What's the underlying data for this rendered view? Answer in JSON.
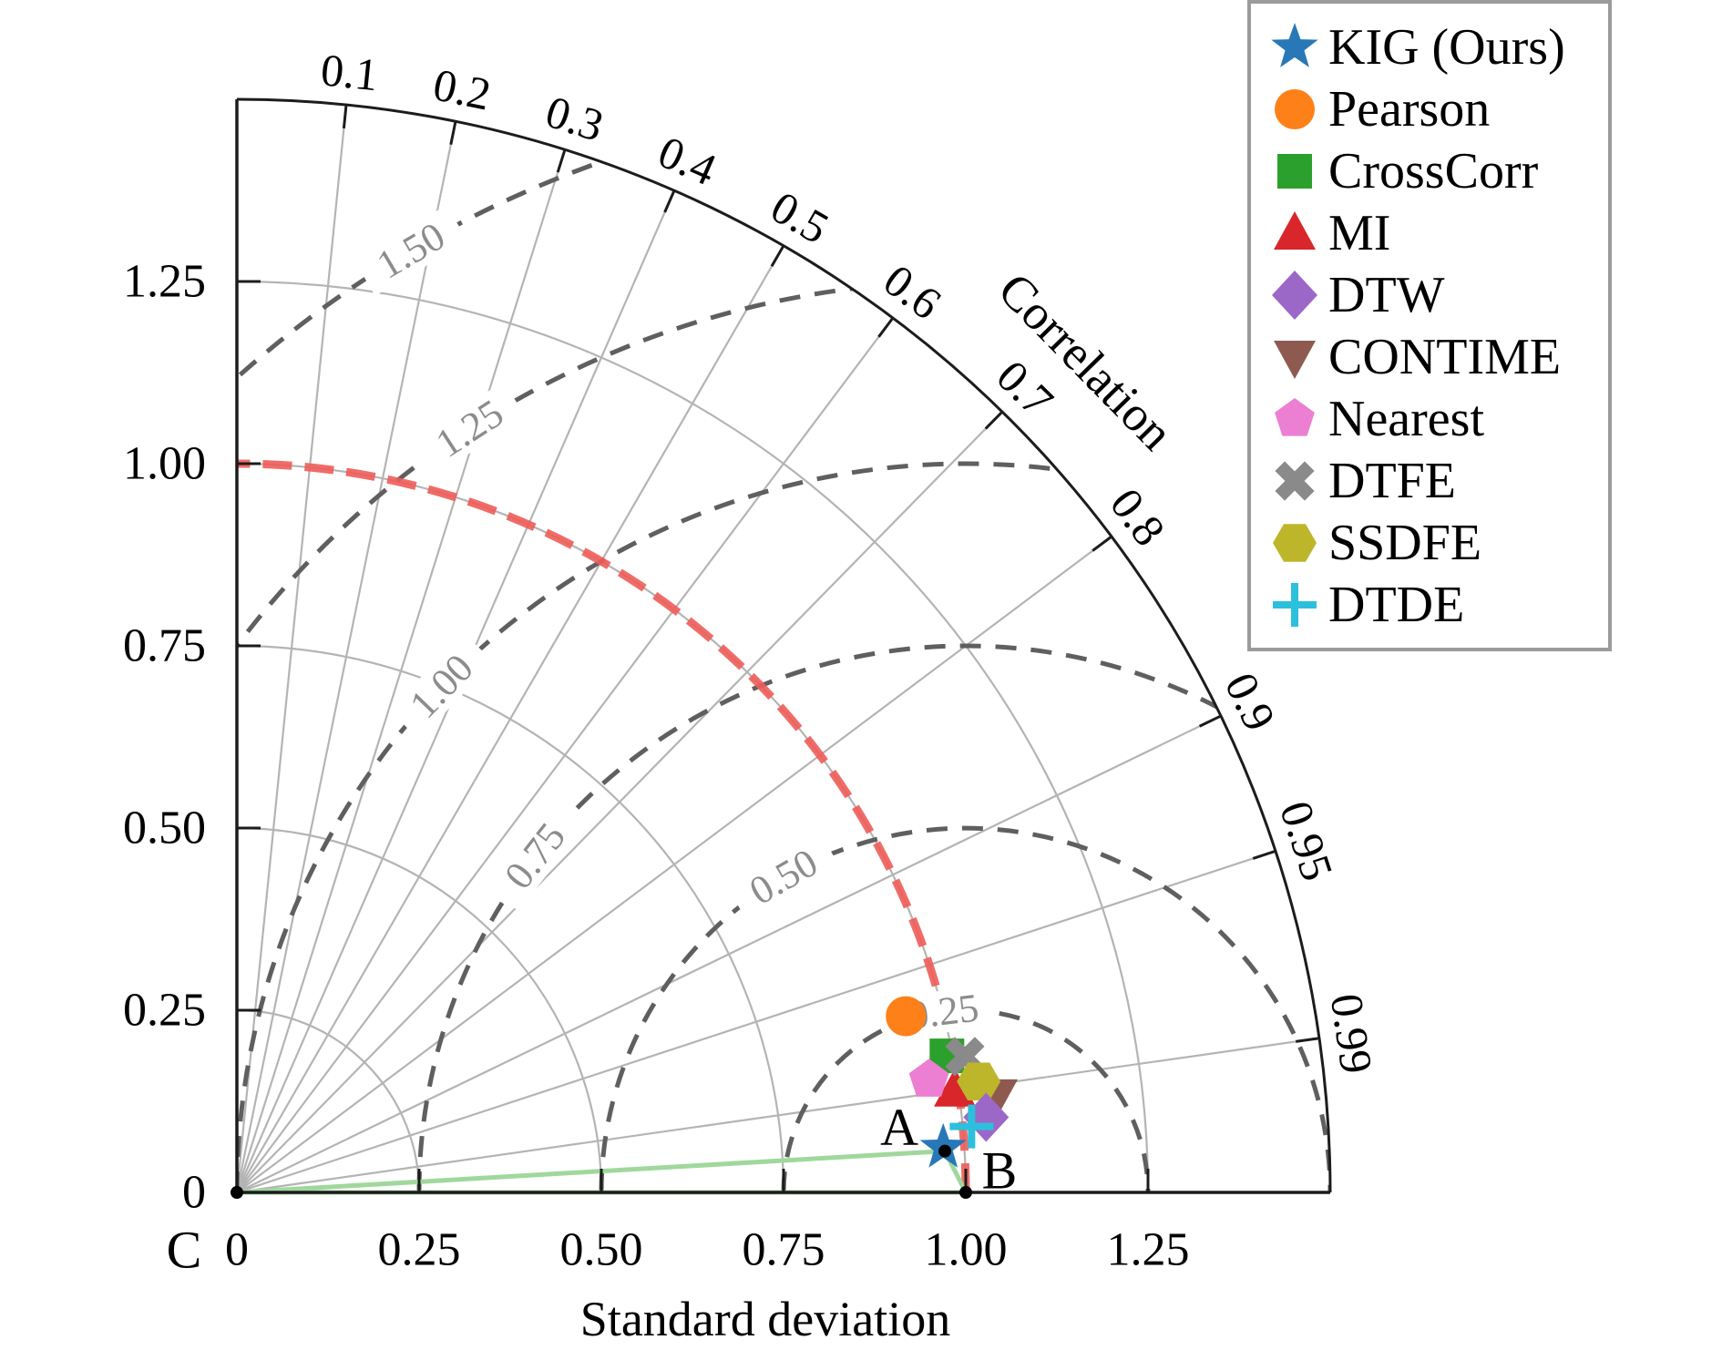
{
  "chart_data": {
    "type": "taylor_diagram",
    "radial_axis": {
      "label": "Standard deviation",
      "ticks": [
        {
          "label": "0",
          "value": 0
        },
        {
          "label": "0.25",
          "value": 0.25
        },
        {
          "label": "0.50",
          "value": 0.5
        },
        {
          "label": "0.75",
          "value": 0.75
        },
        {
          "label": "1.00",
          "value": 1.0
        },
        {
          "label": "1.25",
          "value": 1.25
        }
      ],
      "max": 1.5,
      "grid_values": [
        0.25,
        0.5,
        0.75,
        1.0,
        1.25
      ]
    },
    "angular_axis": {
      "label": "Correlation",
      "ticks": [
        {
          "label": "0.1",
          "value": 0.1
        },
        {
          "label": "0.2",
          "value": 0.2
        },
        {
          "label": "0.3",
          "value": 0.3
        },
        {
          "label": "0.4",
          "value": 0.4
        },
        {
          "label": "0.5",
          "value": 0.5
        },
        {
          "label": "0.6",
          "value": 0.6
        },
        {
          "label": "0.7",
          "value": 0.7
        },
        {
          "label": "0.8",
          "value": 0.8
        },
        {
          "label": "0.9",
          "value": 0.9
        },
        {
          "label": "0.95",
          "value": 0.95
        },
        {
          "label": "0.99",
          "value": 0.99
        }
      ]
    },
    "rms_contours": {
      "center_std": 1.0,
      "levels": [
        {
          "label": "0.25",
          "value": 0.25,
          "label_azimuth_deg": 97
        },
        {
          "label": "0.50",
          "value": 0.5,
          "label_azimuth_deg": 120
        },
        {
          "label": "0.75",
          "value": 0.75,
          "label_azimuth_deg": 142
        },
        {
          "label": "1.00",
          "value": 1.0,
          "label_azimuth_deg": 136
        },
        {
          "label": "1.25",
          "value": 1.25,
          "label_azimuth_deg": 123
        },
        {
          "label": "1.50",
          "value": 1.5,
          "label_azimuth_deg": 120.5
        }
      ]
    },
    "reference_std_arc": {
      "value": 1.0,
      "color": "#ee5c58"
    },
    "series": [
      {
        "name": "KIG (Ours)",
        "marker": "star",
        "color": "#2878b8",
        "std": 0.971,
        "corr": 0.998
      },
      {
        "name": "Pearson",
        "marker": "circle",
        "color": "#fd8118",
        "std": 0.949,
        "corr": 0.967
      },
      {
        "name": "CrossCorr",
        "marker": "square",
        "color": "#2ca02c",
        "std": 0.992,
        "corr": 0.982
      },
      {
        "name": "MI",
        "marker": "triangle-up",
        "color": "#d8262a",
        "std": 0.995,
        "corr": 0.99
      },
      {
        "name": "DTW",
        "marker": "diamond",
        "color": "#9c68c8",
        "std": 1.033,
        "corr": 0.995
      },
      {
        "name": "CONTIME",
        "marker": "triangle-down",
        "color": "#8e5a50",
        "std": 1.051,
        "corr": 0.992
      },
      {
        "name": "Nearest",
        "marker": "pentagon",
        "color": "#ec7fd2",
        "std": 0.962,
        "corr": 0.987
      },
      {
        "name": "DTFE",
        "marker": "x-filled",
        "color": "#8a8a8a",
        "std": 1.016,
        "corr": 0.983
      },
      {
        "name": "SSDFE",
        "marker": "hexagon",
        "color": "#bdb62b",
        "std": 1.029,
        "corr": 0.989
      },
      {
        "name": "DTDE",
        "marker": "plus",
        "color": "#2cc0dc",
        "std": 1.012,
        "corr": 0.996
      }
    ],
    "annotations": {
      "points": [
        {
          "label": "A",
          "std": 0.973,
          "corr": 0.9983
        },
        {
          "label": "B",
          "std": 1.0,
          "corr": 1.0
        },
        {
          "label": "C",
          "std": 0.0,
          "corr": 1.0
        }
      ],
      "triangle_color": "#a0d89c"
    }
  },
  "legend": {
    "items": [
      "KIG (Ours)",
      "Pearson",
      "CrossCorr",
      "MI",
      "DTW",
      "CONTIME",
      "Nearest",
      "DTFE",
      "SSDFE",
      "DTDE"
    ]
  },
  "colors": {
    "axis": "#1c1c1c",
    "grid": "#b4b4b4",
    "rms_dash": "#5f5f5f",
    "rms_label": "#8c8c8c",
    "reference_arc": "#ee5c58",
    "triangle": "#a0d89c",
    "legend_border": "#9b9b9b",
    "text": "#000000"
  }
}
